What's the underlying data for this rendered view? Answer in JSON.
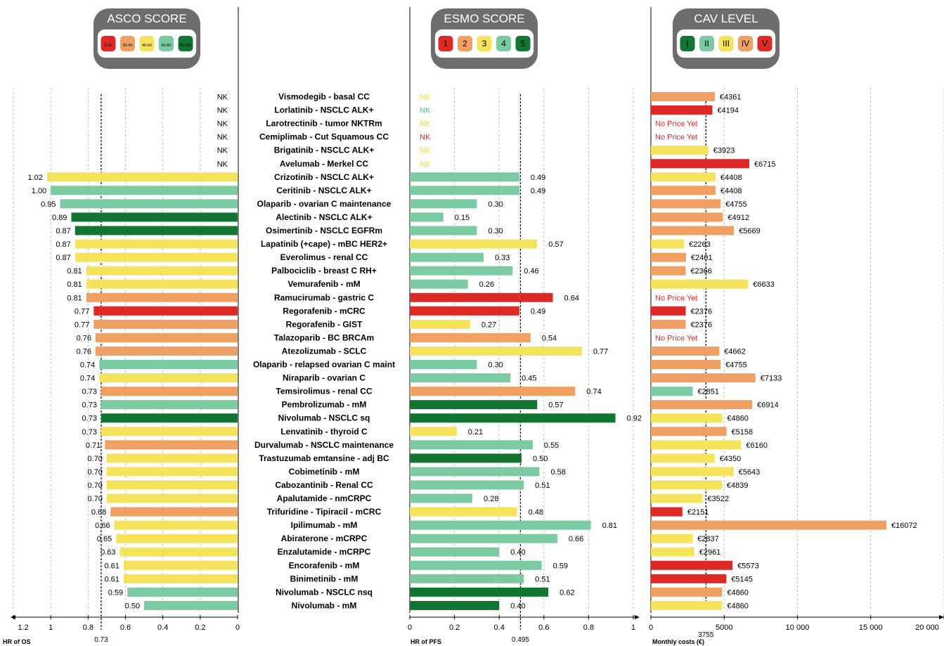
{
  "colors": {
    "score1": "#de2a27",
    "score2": "#f0a062",
    "score3": "#f6e35c",
    "score4": "#7ccaa2",
    "score5": "#137532",
    "nk_yellow": "#f0d94a",
    "nk_teal": "#5fb898",
    "nk_red": "#de2a27",
    "badge_bg": "#6d6d6d"
  },
  "legends": {
    "asco": {
      "title": "ASCO SCORE",
      "items": [
        "0-20",
        "20-40",
        "40-60",
        "60-80",
        "80-100"
      ]
    },
    "esmo": {
      "title": "ESMO SCORE",
      "items": [
        "1",
        "2",
        "3",
        "4",
        "5"
      ]
    },
    "cav": {
      "title": "CAV LEVEL",
      "items": [
        "I",
        "II",
        "III",
        "IV",
        "V"
      ]
    }
  },
  "chart_data": [
    {
      "type": "bar",
      "xlabel": "HR of OS",
      "xlim": [
        1.2,
        0
      ],
      "ticks": [
        "1.2",
        "1",
        "0.8",
        "0.6",
        "0.4",
        "0.2",
        "0"
      ],
      "reference_line": {
        "value": 0.73,
        "label": "0.73"
      },
      "nk_label": "NK",
      "values": [
        null,
        null,
        null,
        null,
        null,
        null,
        1.02,
        1.0,
        0.95,
        0.89,
        0.87,
        0.87,
        0.87,
        0.81,
        0.81,
        0.81,
        0.77,
        0.77,
        0.76,
        0.76,
        0.74,
        0.74,
        0.73,
        0.73,
        0.73,
        0.73,
        0.71,
        0.7,
        0.7,
        0.7,
        0.7,
        0.68,
        0.66,
        0.65,
        0.63,
        0.61,
        0.61,
        0.59,
        0.5
      ],
      "labels": [
        "",
        "",
        "",
        "",
        "",
        "",
        "1.02",
        "1.00",
        "0.95",
        "0.89",
        "0.87",
        "0.87",
        "0.87",
        "0.81",
        "0.81",
        "0.81",
        "0.77",
        "0.77",
        "0.76",
        "0.76",
        "0.74",
        "0.74",
        "0.73",
        "0.73",
        "0.73",
        "0.73",
        "0.71",
        "0.70",
        "0.70",
        "0.70",
        "0.70",
        "0.68",
        "0.66",
        "0.65",
        "0.63",
        "0.61",
        "0.61",
        "0.59",
        "0.50"
      ],
      "scores": [
        0,
        0,
        0,
        0,
        0,
        0,
        3,
        4,
        4,
        5,
        5,
        3,
        3,
        3,
        3,
        2,
        1,
        2,
        2,
        2,
        4,
        3,
        2,
        4,
        5,
        3,
        2,
        3,
        3,
        3,
        3,
        2,
        3,
        3,
        3,
        3,
        3,
        4,
        4
      ]
    },
    {
      "type": "table",
      "categories": [
        "Vismodegib - basal CC",
        "Lorlatinib - NSCLC ALK+",
        "Larotrectinib - tumor NKTRm",
        "Cemiplimab - Cut Squamous CC",
        "Brigatinib - NSCLC ALK+",
        "Avelumab - Merkel CC",
        "Crizotinib - NSCLC ALK+",
        "Ceritinib - NSCLC ALK+",
        "Olaparib - ovarian C maintenance",
        "Alectinib - NSCLC ALK+",
        "Osimertinib - NSCLC EGFRm",
        "Lapatinib (+cape) - mBC HER2+",
        "Everolimus - renal CC",
        "Palbociclib - breast C RH+",
        "Vemurafenib - mM",
        "Ramucirumab - gastric C",
        "Regorafenib - mCRC",
        "Regorafenib - GIST",
        "Talazoparib - BC BRCAm",
        "Atezolizumab - SCLC",
        "Olaparib - relapsed ovarian C maint",
        "Niraparib - ovarian C",
        "Temsirolimus - renal CC",
        "Pembrolizumab - mM",
        "Nivolumab - NSCLC sq",
        "Lenvatinib - thyroid C",
        "Durvalumab - NSCLC maintenance",
        "Trastuzumab emtansine - adj BC",
        "Cobimetinib - mM",
        "Cabozantinib - Renal CC",
        "Apalutamide - nmCRPC",
        "Trifuridine - Tipiracil - mCRC",
        "Ipilimumab - mM",
        "Abiraterone - mCRPC",
        "Enzalutamide - mCRPC",
        "Encorafenib - mM",
        "Binimetinib - mM",
        "Nivolumab - NSCLC nsq",
        "Nivolumab - mM"
      ]
    },
    {
      "type": "bar",
      "xlabel": "HR of PFS",
      "xlim": [
        0,
        1
      ],
      "ticks": [
        "0",
        "0.2",
        "0.4",
        "0.6",
        "0.8",
        "1"
      ],
      "reference_line": {
        "value": 0.495,
        "label": "0.495"
      },
      "nk_label": "NK",
      "nk_colors": [
        "#f0d94a",
        "#5fb898",
        "#f0d94a",
        "#de2a27",
        "#f0d94a",
        "#f0d94a"
      ],
      "values": [
        null,
        null,
        null,
        null,
        null,
        null,
        0.49,
        0.49,
        0.3,
        0.15,
        0.3,
        0.57,
        0.33,
        0.46,
        0.26,
        0.64,
        0.49,
        0.27,
        0.54,
        0.77,
        0.3,
        0.45,
        0.74,
        0.57,
        0.92,
        0.21,
        0.55,
        0.5,
        0.58,
        0.51,
        0.28,
        0.48,
        0.81,
        0.66,
        0.4,
        0.59,
        0.51,
        0.62,
        0.4
      ],
      "labels": [
        "",
        "",
        "",
        "",
        "",
        "",
        "0.49",
        "0.49",
        "0.30",
        "0.15",
        "0.30",
        "0.57",
        "0.33",
        "0.46",
        "0.26",
        "0.64",
        "0.49",
        "0.27",
        "0.54",
        "0.77",
        "0.30",
        "0.45",
        "0.74",
        "0.57",
        "0.92",
        "0.21",
        "0.55",
        "0.50",
        "0.58",
        "0.51",
        "0.28",
        "0.48",
        "0.81",
        "0.66",
        "0.40",
        "0.59",
        "0.51",
        "0.62",
        "0.40"
      ],
      "scores": [
        0,
        0,
        0,
        0,
        0,
        0,
        4,
        4,
        4,
        4,
        4,
        3,
        4,
        4,
        4,
        1,
        1,
        3,
        2,
        3,
        4,
        4,
        2,
        5,
        5,
        3,
        4,
        5,
        4,
        4,
        4,
        3,
        4,
        4,
        4,
        4,
        4,
        5,
        5
      ]
    },
    {
      "type": "bar",
      "xlabel": "Monthly costs (€)",
      "xlim": [
        0,
        20000
      ],
      "ticks": [
        "0",
        "5000",
        "10 000",
        "15 000",
        "20 000"
      ],
      "reference_line": {
        "value": 3755,
        "label": "3755"
      },
      "no_price_label": "No Price Yet",
      "values": [
        4361,
        4194,
        null,
        null,
        3923,
        6715,
        4408,
        4408,
        4755,
        4912,
        5669,
        2263,
        2401,
        2366,
        6633,
        null,
        2376,
        2376,
        null,
        4662,
        4755,
        7133,
        2851,
        6914,
        4860,
        5158,
        6160,
        4350,
        5643,
        4839,
        3522,
        2151,
        16072,
        2837,
        2961,
        5573,
        5145,
        4860,
        4860
      ],
      "labels": [
        "€4361",
        "€4194",
        "No Price Yet",
        "No Price Yet",
        "€3923",
        "€6715",
        "€4408",
        "€4408",
        "€4755",
        "€4912",
        "€5669",
        "€2263",
        "€2401",
        "€2366",
        "€6633",
        "No Price Yet",
        "€2376",
        "€2376",
        "No Price Yet",
        "€4662",
        "€4755",
        "€7133",
        "€2851",
        "€6914",
        "€4860",
        "€5158",
        "€6160",
        "€4350",
        "€5643",
        "€4839",
        "€3522",
        "€2151",
        "€16072",
        "€2837",
        "€2961",
        "€5573",
        "€5145",
        "€4860",
        "€4860"
      ],
      "cav_level": [
        4,
        5,
        0,
        0,
        3,
        5,
        3,
        4,
        4,
        4,
        4,
        3,
        4,
        4,
        3,
        0,
        5,
        4,
        0,
        4,
        4,
        4,
        2,
        4,
        3,
        4,
        3,
        3,
        3,
        3,
        3,
        5,
        4,
        3,
        3,
        5,
        5,
        4,
        3
      ]
    }
  ]
}
